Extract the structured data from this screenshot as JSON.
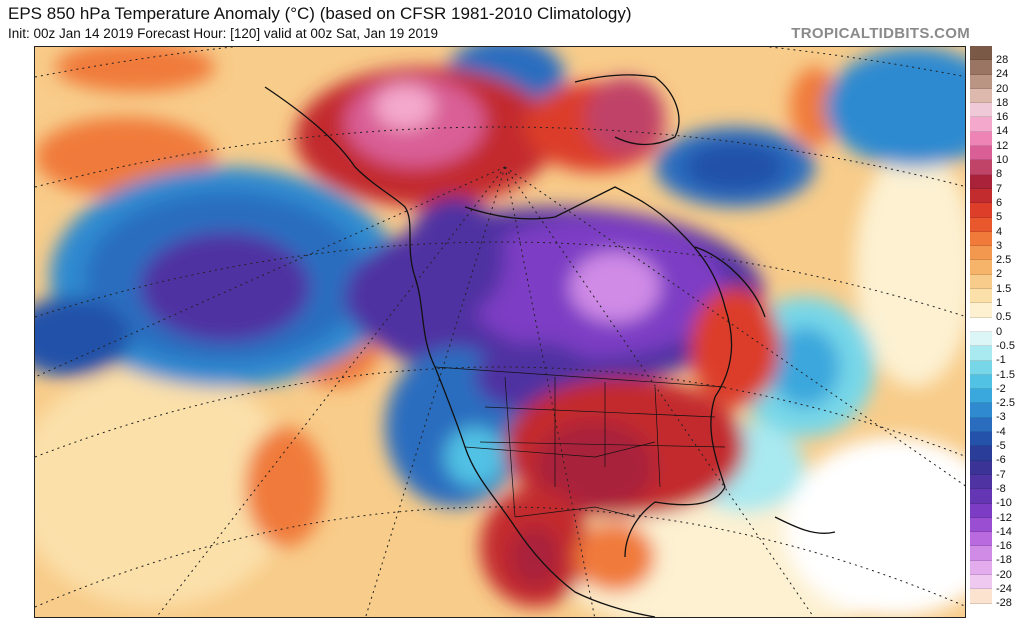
{
  "header": {
    "title": "EPS 850 hPa Temperature Anomaly (°C) (based on CFSR 1981-2010 Climatology)",
    "subtitle": "Init: 00z Jan 14 2019   Forecast Hour: [120]   valid at 00z Sat, Jan 19 2019",
    "brand": "TROPICALTIDBITS.COM"
  },
  "colorbar": {
    "levels": [
      {
        "label": "28",
        "color": "#7a5a47"
      },
      {
        "label": "24",
        "color": "#9a7563"
      },
      {
        "label": "20",
        "color": "#bb9584"
      },
      {
        "label": "18",
        "color": "#dcb8ad"
      },
      {
        "label": "16",
        "color": "#f0c9d8"
      },
      {
        "label": "14",
        "color": "#f4a9cc"
      },
      {
        "label": "12",
        "color": "#ee84b6"
      },
      {
        "label": "10",
        "color": "#d95f96"
      },
      {
        "label": "8",
        "color": "#c04368"
      },
      {
        "label": "7",
        "color": "#a9223a"
      },
      {
        "label": "6",
        "color": "#c32c2e"
      },
      {
        "label": "5",
        "color": "#dc3e2a"
      },
      {
        "label": "4",
        "color": "#e9582d"
      },
      {
        "label": "3",
        "color": "#f07a3a"
      },
      {
        "label": "2.5",
        "color": "#f3984f"
      },
      {
        "label": "2",
        "color": "#f6b46a"
      },
      {
        "label": "1.5",
        "color": "#f8cc8a"
      },
      {
        "label": "1",
        "color": "#fbe0aa"
      },
      {
        "label": "0.5",
        "color": "#fdf1d2"
      },
      {
        "label": "0",
        "color": "#ffffff"
      },
      {
        "label": "-0.5",
        "color": "#dcf5f7"
      },
      {
        "label": "-1",
        "color": "#a9e9f0"
      },
      {
        "label": "-1.5",
        "color": "#77d7e8"
      },
      {
        "label": "-2",
        "color": "#51c1e4"
      },
      {
        "label": "-2.5",
        "color": "#3aa7dd"
      },
      {
        "label": "-3",
        "color": "#2f8ad0"
      },
      {
        "label": "-4",
        "color": "#2a6dbf"
      },
      {
        "label": "-5",
        "color": "#2451a9"
      },
      {
        "label": "-6",
        "color": "#2a3d98"
      },
      {
        "label": "-7",
        "color": "#3b3496"
      },
      {
        "label": "-8",
        "color": "#4f33a2"
      },
      {
        "label": "-10",
        "color": "#6536b3"
      },
      {
        "label": "-12",
        "color": "#7d3cc4"
      },
      {
        "label": "-14",
        "color": "#9a4ed2"
      },
      {
        "label": "-16",
        "color": "#b86ade"
      },
      {
        "label": "-18",
        "color": "#d08be6"
      },
      {
        "label": "-20",
        "color": "#e3acec"
      },
      {
        "label": "-24",
        "color": "#f0c9f0"
      },
      {
        "label": "-28",
        "color": "#fbe3cf"
      }
    ]
  }
}
